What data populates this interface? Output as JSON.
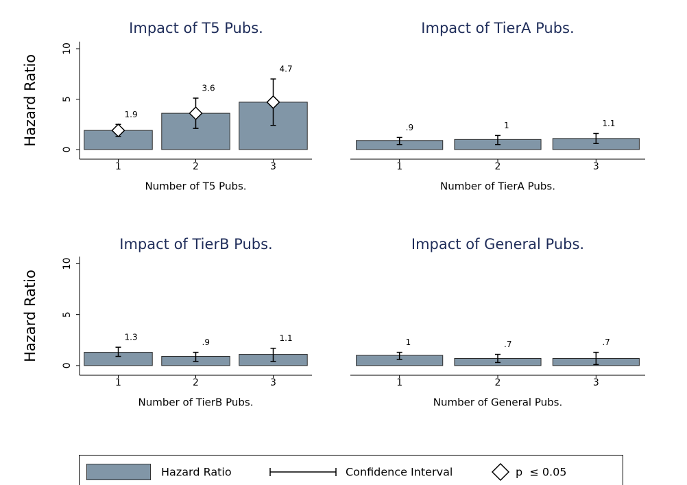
{
  "chart_data": [
    {
      "type": "bar",
      "title": "Impact of T5 Pubs.",
      "xlabel": "Number of T5 Pubs.",
      "ylabel": "Hazard Ratio",
      "categories": [
        "1",
        "2",
        "3"
      ],
      "values": [
        1.9,
        3.6,
        4.7
      ],
      "value_labels": [
        "1.9",
        "3.6",
        "4.7"
      ],
      "ci_lower": [
        1.3,
        2.1,
        2.4
      ],
      "ci_upper": [
        2.5,
        5.1,
        7.0
      ],
      "significant": [
        true,
        true,
        true
      ],
      "color": "#8196a7",
      "ylim": [
        -0.95,
        10.7
      ],
      "yticks": [
        0,
        5,
        10
      ]
    },
    {
      "type": "bar",
      "title": "Impact of TierA Pubs.",
      "xlabel": "Number of TierA Pubs.",
      "categories": [
        "1",
        "2",
        "3"
      ],
      "values": [
        0.9,
        1,
        1.1
      ],
      "value_labels": [
        ".9",
        "1",
        "1.1"
      ],
      "ci_lower": [
        0.5,
        0.5,
        0.6
      ],
      "ci_upper": [
        1.2,
        1.4,
        1.6
      ],
      "significant": [
        false,
        false,
        false
      ],
      "color": "#8196a7",
      "ylim": [
        -0.95,
        10.7
      ]
    },
    {
      "type": "bar",
      "title": "Impact of TierB Pubs.",
      "xlabel": "Number of TierB Pubs.",
      "ylabel": "Hazard Ratio",
      "categories": [
        "1",
        "2",
        "3"
      ],
      "values": [
        1.3,
        0.9,
        1.1
      ],
      "value_labels": [
        "1.3",
        ".9",
        "1.1"
      ],
      "ci_lower": [
        0.9,
        0.4,
        0.4
      ],
      "ci_upper": [
        1.8,
        1.3,
        1.7
      ],
      "significant": [
        false,
        false,
        false
      ],
      "color": "#8196a7",
      "ylim": [
        -0.95,
        10.7
      ],
      "yticks": [
        0,
        5,
        10
      ]
    },
    {
      "type": "bar",
      "title": "Impact of General Pubs.",
      "xlabel": "Number of General Pubs.",
      "categories": [
        "1",
        "2",
        "3"
      ],
      "values": [
        1,
        0.7,
        0.7
      ],
      "value_labels": [
        "1",
        ".7",
        ".7"
      ],
      "ci_lower": [
        0.6,
        0.3,
        0.1
      ],
      "ci_upper": [
        1.3,
        1.1,
        1.3
      ],
      "significant": [
        false,
        false,
        false
      ],
      "color": "#8196a7",
      "ylim": [
        -0.95,
        10.7
      ]
    }
  ],
  "legend": {
    "bar": "Hazard Ratio",
    "ci": "Confidence Interval",
    "sig": "p  ≤ 0.05"
  }
}
